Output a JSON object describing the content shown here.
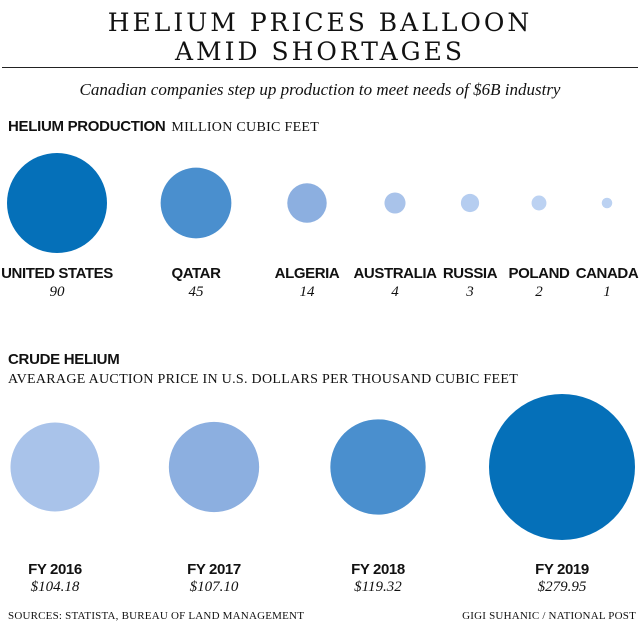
{
  "title_line1": "HELIUM PRICES BALLOON",
  "title_line2": "AMID SHORTAGES",
  "subtitle": "Canadian companies step up production to meet needs of $6B industry",
  "chart_data": [
    {
      "type": "bubble",
      "title": "HELIUM PRODUCTION",
      "unit": "MILLION CUBIC FEET",
      "categories": [
        "UNITED STATES",
        "QATAR",
        "ALGERIA",
        "AUSTRALIA",
        "RUSSIA",
        "POLAND",
        "CANADA"
      ],
      "values": [
        90,
        45,
        14,
        4,
        3,
        2,
        1
      ],
      "value_labels": [
        "90",
        "45",
        "14",
        "4",
        "3",
        "2",
        "1"
      ],
      "colors": [
        "#0570b9",
        "#4a8fce",
        "#8cafe0",
        "#a9c3ea",
        "#b5cdf0",
        "#bcd2f2",
        "#bcd2f2"
      ]
    },
    {
      "type": "bubble",
      "title": "CRUDE HELIUM",
      "unit": "AVEARAGE AUCTION PRICE IN U.S. DOLLARS PER THOUSAND CUBIC FEET",
      "categories": [
        "FY 2016",
        "FY 2017",
        "FY 2018",
        "FY 2019"
      ],
      "values": [
        104.18,
        107.1,
        119.32,
        279.95
      ],
      "value_labels": [
        "$104.18",
        "$107.10",
        "$119.32",
        "$279.95"
      ],
      "colors": [
        "#a9c3ea",
        "#8cafe0",
        "#4a8fce",
        "#0570b9"
      ]
    }
  ],
  "footer": {
    "sources": "SOURCES: STATISTA, BUREAU OF LAND MANAGEMENT",
    "credit": "GIGI SUHANIC / NATIONAL POST"
  }
}
